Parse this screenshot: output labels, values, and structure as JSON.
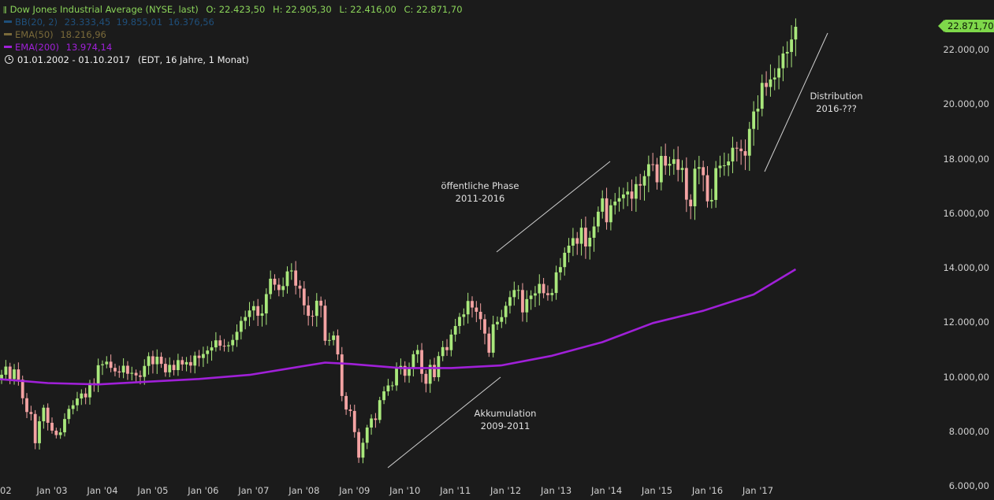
{
  "header": {
    "instrument": "Dow Jones Industrial Average (NYSE, last)",
    "open": "O: 22.423,50",
    "high": "H: 22.905,30",
    "low": "L: 22.416,00",
    "close": "C: 22.871,70",
    "bb_label": "BB(20, 2)",
    "bb_values": "23.333,45  19.855,01  16.376,56",
    "ema50_label": "EMA(50)",
    "ema50_value": "18.216,96",
    "ema200_label": "EMA(200)",
    "ema200_value": "13.974,14",
    "range": "01.01.2002 - 01.10.2017",
    "range_info": "(EDT, 16 Jahre, 1 Monat)"
  },
  "colors": {
    "background": "#1b1b1b",
    "up": "#a9e87c",
    "down": "#f4a3a3",
    "ema200": "#a020d8",
    "ema50": "#7a6a3a",
    "bb": "#1f4f7a",
    "accent": "#7ed84a"
  },
  "last_price_badge": "22.871,70",
  "annotations": {
    "distribution": [
      "Distribution",
      "2016-???"
    ],
    "public_phase": [
      "öffentliche Phase",
      "2011-2016"
    ],
    "accumulation": [
      "Akkumulation",
      "2009-2011"
    ]
  },
  "chart_data": {
    "type": "candlestick",
    "interval": "monthly",
    "title": "Dow Jones Industrial Average (NYSE, last)",
    "x_range": [
      "2001-12",
      "2017-10"
    ],
    "x_ticks": [
      "02",
      "Jan '03",
      "Jan '04",
      "Jan '05",
      "Jan '06",
      "Jan '07",
      "Jan '08",
      "Jan '09",
      "Jan '10",
      "Jan '11",
      "Jan '12",
      "Jan '13",
      "Jan '14",
      "Jan '15",
      "Jan '16",
      "Jan '17"
    ],
    "y_ticks": [
      "6.000,00",
      "8.000,00",
      "10.000,00",
      "12.000,00",
      "14.000,00",
      "16.000,00",
      "18.000,00",
      "20.000,00",
      "22.000,00"
    ],
    "y_tick_values": [
      6000,
      8000,
      10000,
      12000,
      14000,
      16000,
      18000,
      20000,
      22000
    ],
    "ylim": [
      6000,
      23500
    ],
    "grid": false,
    "closes": [
      9920,
      10105,
      10404,
      9946,
      10301,
      9925,
      9243,
      8737,
      8664,
      7592,
      8397,
      8896,
      8342,
      8054,
      7891,
      7992,
      8480,
      8850,
      8985,
      9234,
      9416,
      9275,
      9801,
      9782,
      10453,
      10488,
      10584,
      10357,
      10226,
      10188,
      10435,
      10140,
      10174,
      10080,
      10027,
      10428,
      10783,
      10490,
      10766,
      10504,
      10193,
      10467,
      10275,
      10641,
      10482,
      10569,
      10440,
      10806,
      10718,
      10865,
      10993,
      11109,
      11367,
      11168,
      11150,
      11186,
      11381,
      11679,
      12081,
      12222,
      12463,
      12622,
      12269,
      12354,
      13063,
      13628,
      13409,
      13212,
      13358,
      13896,
      13930,
      13372,
      13265,
      12650,
      12266,
      12263,
      12820,
      12638,
      11350,
      11378,
      11544,
      10851,
      9325,
      8829,
      8776,
      8001,
      7063,
      7609,
      8168,
      8500,
      8447,
      9172,
      9496,
      9712,
      9713,
      10345,
      10428,
      10067,
      10325,
      10857,
      11009,
      10137,
      9774,
      10466,
      10015,
      10788,
      11118,
      11006,
      11578,
      11892,
      12226,
      12320,
      12811,
      12570,
      12414,
      12143,
      11614,
      10913,
      11955,
      12046,
      12218,
      12633,
      12952,
      13212,
      13214,
      12393,
      12880,
      13009,
      13091,
      13437,
      13096,
      13026,
      13104,
      13861,
      14054,
      14579,
      14840,
      15116,
      14910,
      15500,
      14810,
      15130,
      15546,
      16086,
      16577,
      15699,
      16322,
      16458,
      16581,
      16717,
      16827,
      16563,
      17098,
      17043,
      17391,
      17828,
      17823,
      17165,
      18133,
      17776,
      17841,
      18011,
      17620,
      17690,
      16528,
      16285,
      17664,
      17720,
      17425,
      16466,
      16517,
      17685,
      17774,
      17787,
      17930,
      18432,
      18401,
      18308,
      18142,
      19124,
      19763,
      19864,
      20812,
      20663,
      20940,
      21009,
      21350,
      21891,
      21948,
      22405,
      22871
    ],
    "ema200": {
      "x": [
        "2001-12",
        "2002-12",
        "2003-12",
        "2004-12",
        "2005-12",
        "2006-12",
        "2007-12",
        "2008-06",
        "2008-12",
        "2009-12",
        "2010-12",
        "2011-12",
        "2012-12",
        "2013-12",
        "2014-12",
        "2015-12",
        "2016-12",
        "2017-10"
      ],
      "y": [
        9950,
        9800,
        9750,
        9850,
        9950,
        10100,
        10400,
        10550,
        10500,
        10350,
        10350,
        10450,
        10800,
        11300,
        12000,
        12450,
        13050,
        13974
      ]
    }
  }
}
